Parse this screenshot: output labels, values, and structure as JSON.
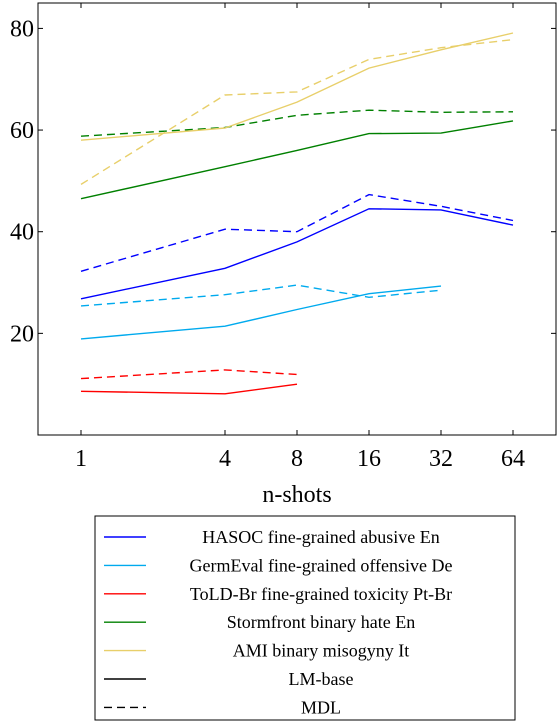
{
  "chart_data": {
    "type": "line",
    "x": [
      1,
      4,
      8,
      16,
      32,
      64
    ],
    "xscale": "log2",
    "xlabel": "n-shots",
    "ylabel": "",
    "ylim": [
      0,
      85
    ],
    "yticks": [
      20,
      40,
      60,
      80
    ],
    "grid": false,
    "legend": "bottom",
    "series": [
      {
        "name": "HASOC fine-grained abusive En",
        "color": "#0000ff",
        "style": "solid",
        "values": [
          26.8,
          32.8,
          38,
          44.5,
          44.3,
          41.3
        ]
      },
      {
        "name": "HASOC fine-grained abusive En",
        "color": "#0000ff",
        "style": "dashed",
        "values": [
          32.2,
          40.5,
          40,
          47.3,
          45,
          42.2
        ]
      },
      {
        "name": "GermEval fine-grained offensive De",
        "color": "#00aaee",
        "style": "solid",
        "values": [
          18.9,
          21.4,
          24.7,
          27.8,
          29.3,
          null
        ]
      },
      {
        "name": "GermEval fine-grained offensive De",
        "color": "#00aaee",
        "style": "dashed",
        "values": [
          25.4,
          27.6,
          29.5,
          27.1,
          28.5,
          null
        ]
      },
      {
        "name": "ToLD-Br fine-grained toxicity Pt-Br",
        "color": "#ff0000",
        "style": "solid",
        "values": [
          8.6,
          8.1,
          10,
          null,
          null,
          null
        ]
      },
      {
        "name": "ToLD-Br fine-grained toxicity Pt-Br",
        "color": "#ff0000",
        "style": "dashed",
        "values": [
          11.1,
          12.8,
          11.9,
          null,
          null,
          null
        ]
      },
      {
        "name": "Stormfront binary hate En",
        "color": "#008000",
        "style": "solid",
        "values": [
          46.5,
          52.8,
          56,
          59.3,
          59.4,
          61.8
        ]
      },
      {
        "name": "Stormfront binary hate En",
        "color": "#008000",
        "style": "dashed",
        "values": [
          58.8,
          60.5,
          62.9,
          63.9,
          63.5,
          63.6
        ]
      },
      {
        "name": "AMI binary misogyny It",
        "color": "#e8cf6a",
        "style": "solid",
        "values": [
          58,
          60.4,
          65.5,
          72.2,
          75.8,
          79.1
        ]
      },
      {
        "name": "AMI binary misogyny It",
        "color": "#e8cf6a",
        "style": "dashed",
        "values": [
          49.3,
          66.9,
          67.5,
          73.9,
          76.2,
          77.8
        ]
      }
    ],
    "legend_entries": [
      {
        "label": "HASOC fine-grained abusive En",
        "color": "#0000ff",
        "style": "solid"
      },
      {
        "label": "GermEval fine-grained offensive De",
        "color": "#00aaee",
        "style": "solid"
      },
      {
        "label": "ToLD-Br fine-grained toxicity Pt-Br",
        "color": "#ff0000",
        "style": "solid"
      },
      {
        "label": "Stormfront binary hate En",
        "color": "#008000",
        "style": "solid"
      },
      {
        "label": "AMI binary misogyny It",
        "color": "#e8cf6a",
        "style": "solid"
      },
      {
        "label": "LM-base",
        "color": "#000000",
        "style": "solid"
      },
      {
        "label": "MDL",
        "color": "#000000",
        "style": "dashed"
      }
    ]
  }
}
